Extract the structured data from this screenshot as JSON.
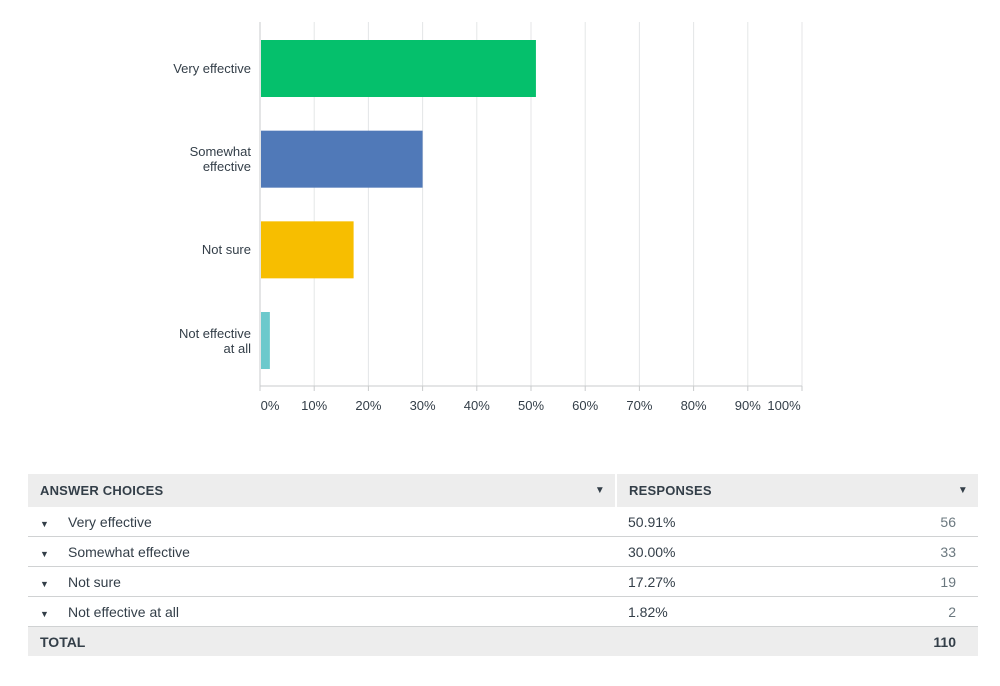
{
  "chart_data": {
    "type": "bar",
    "orientation": "horizontal",
    "categories": [
      "Very effective",
      "Somewhat effective",
      "Not sure",
      "Not effective at all"
    ],
    "category_lines": [
      [
        "Very effective"
      ],
      [
        "Somewhat",
        "effective"
      ],
      [
        "Not sure"
      ],
      [
        "Not effective",
        "at all"
      ]
    ],
    "values": [
      50.91,
      30.0,
      17.27,
      1.82
    ],
    "colors": [
      "#05c06c",
      "#5079b8",
      "#f7be00",
      "#6cc9cc"
    ],
    "xlim": [
      0,
      100
    ],
    "xticks": [
      "0%",
      "10%",
      "20%",
      "30%",
      "40%",
      "50%",
      "60%",
      "70%",
      "80%",
      "90%",
      "100%"
    ],
    "grid": true
  },
  "table": {
    "header_choices": "ANSWER CHOICES",
    "header_responses": "RESPONSES",
    "rows": [
      {
        "choice": "Very effective",
        "percent": "50.91%",
        "count": "56"
      },
      {
        "choice": "Somewhat effective",
        "percent": "30.00%",
        "count": "33"
      },
      {
        "choice": "Not sure",
        "percent": "17.27%",
        "count": "19"
      },
      {
        "choice": "Not effective at all",
        "percent": "1.82%",
        "count": "2"
      }
    ],
    "total_label": "TOTAL",
    "total_count": "110"
  }
}
